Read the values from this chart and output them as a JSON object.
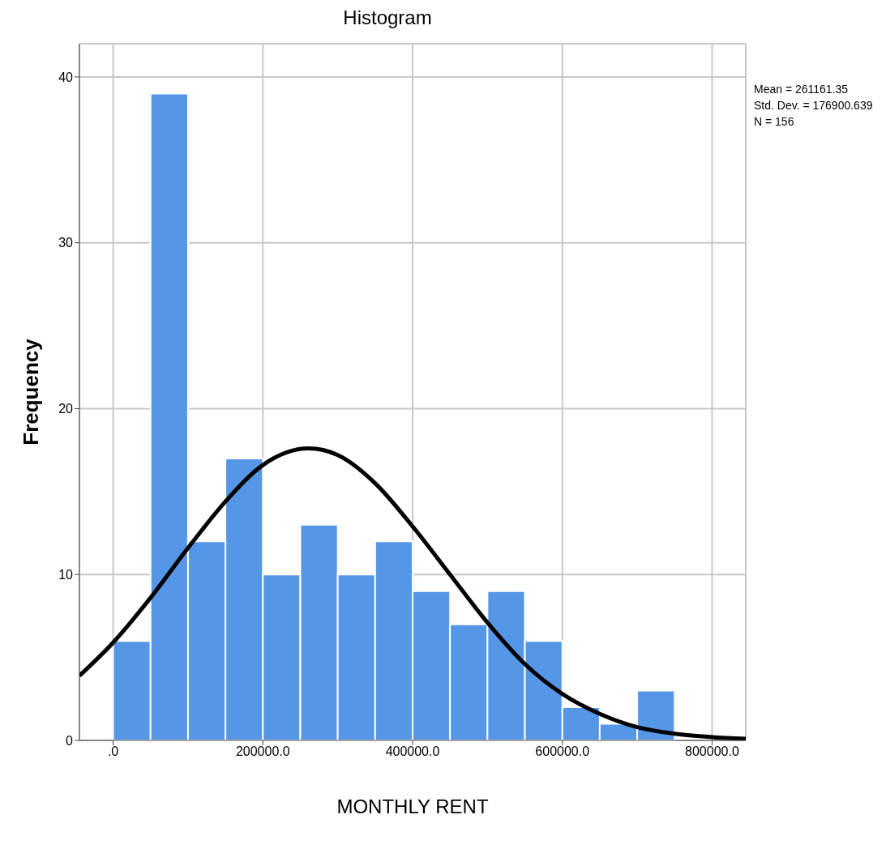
{
  "chart_data": {
    "type": "histogram",
    "title": "Histogram",
    "xlabel": "MONTHLY RENT",
    "ylabel": "Frequency",
    "bins": [
      0,
      50000,
      100000,
      150000,
      200000,
      250000,
      300000,
      350000,
      400000,
      450000,
      500000,
      550000,
      600000,
      650000,
      700000,
      750000
    ],
    "values": [
      6,
      39,
      12,
      17,
      10,
      13,
      10,
      12,
      9,
      7,
      9,
      6,
      2,
      1,
      3
    ],
    "color": "#5596e6",
    "series": [
      {
        "type": "line",
        "color": "#000000",
        "x": [
          -45000,
          0,
          50000,
          100000,
          150000,
          200000,
          261161,
          300000,
          350000,
          400000,
          450000,
          500000,
          550000,
          600000,
          650000,
          700000,
          750000,
          800000,
          845000
        ],
        "values": [
          3.9,
          5.9,
          8.6,
          11.6,
          14.4,
          16.6,
          17.6,
          17.2,
          15.5,
          12.9,
          10.0,
          7.1,
          4.6,
          2.8,
          1.6,
          0.8,
          0.4,
          0.2,
          0.1
        ]
      }
    ],
    "xlim": [
      -45000,
      845000
    ],
    "ylim": [
      0,
      42
    ],
    "xticks": [
      {
        "value": 0,
        "label": ".0"
      },
      {
        "value": 200000,
        "label": "200000.0"
      },
      {
        "value": 400000,
        "label": "400000.0"
      },
      {
        "value": 600000,
        "label": "600000.0"
      },
      {
        "value": 800000,
        "label": "800000.0"
      }
    ],
    "yticks": [
      0,
      10,
      20,
      30,
      40
    ],
    "grid": true,
    "annotations": [
      "Mean = 261161.35",
      "Std. Dev. = 176900.639",
      "N = 156"
    ]
  }
}
